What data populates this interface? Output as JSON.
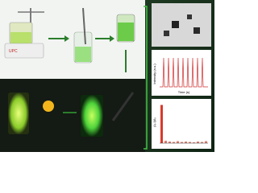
{
  "photo": {
    "brand": "UPC"
  },
  "intensity_plot": {
    "ylabel": "Intensity (a.u.)",
    "xlabel": "Time (s)"
  },
  "response_plot": {
    "ylabel": "(I₀-I)/I₀",
    "values": [
      0.95,
      0.06,
      0.04,
      0.03,
      0.05,
      0.03,
      0.04,
      0.03,
      0.02,
      0.04,
      0.03,
      0.05
    ],
    "ylim": [
      0,
      1
    ]
  }
}
